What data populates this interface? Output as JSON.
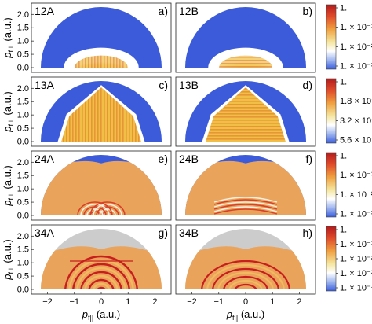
{
  "figure": {
    "y_axis_label": "p_{f⊥} (a.u.)",
    "y_axis_label_main": "p",
    "y_axis_label_sub": "f⊥",
    "y_axis_label_unit": " (a.u.)",
    "x_axis_label_main": "p",
    "x_axis_label_sub": "f||",
    "x_axis_label_unit": " (a.u.)",
    "x_ticks": [
      "−2",
      "−1",
      "0",
      "1",
      "2"
    ],
    "y_ticks": [
      "0.0",
      "0.5",
      "1.0",
      "1.5",
      "2.0"
    ]
  },
  "rows": [
    {
      "panels": [
        {
          "id": "12A",
          "letter": "a)"
        },
        {
          "id": "12B",
          "letter": "b)"
        }
      ],
      "colorbar": {
        "ticks": [
          "1.",
          "1.×10⁻¹",
          "1.×10⁻²",
          "1.×10⁻³"
        ],
        "tick_labels": [
          "1.",
          "1. × 10⁻¹",
          "1. × 10⁻²",
          "1. × 10⁻³"
        ]
      }
    },
    {
      "panels": [
        {
          "id": "13A",
          "letter": "c)"
        },
        {
          "id": "13B",
          "letter": "d)"
        }
      ],
      "colorbar": {
        "tick_labels": [
          "1.",
          "1.8 × 10⁻¹",
          "3.2 × 10⁻²",
          "5.6 × 10⁻³"
        ]
      }
    },
    {
      "panels": [
        {
          "id": "24A",
          "letter": "e)"
        },
        {
          "id": "24B",
          "letter": "f)"
        }
      ],
      "colorbar": {
        "tick_labels": [
          "1.",
          "1. × 10⁻¹",
          "1. × 10⁻²",
          "1. × 10⁻³"
        ]
      }
    },
    {
      "panels": [
        {
          "id": "34A",
          "letter": "g)"
        },
        {
          "id": "34B",
          "letter": "h)"
        }
      ],
      "colorbar": {
        "tick_labels": [
          "1.",
          "1. × 10⁻¹",
          "1. × 10⁻²",
          "1. × 10⁻³",
          "1. × 10⁻⁴"
        ]
      }
    }
  ],
  "colors": {
    "background_blue": "#3b5bdb",
    "orange": "#e9a35a",
    "yellow": "#f2d34a",
    "red": "#c21e1e",
    "gray": "#cccccc",
    "white": "#ffffff"
  }
}
